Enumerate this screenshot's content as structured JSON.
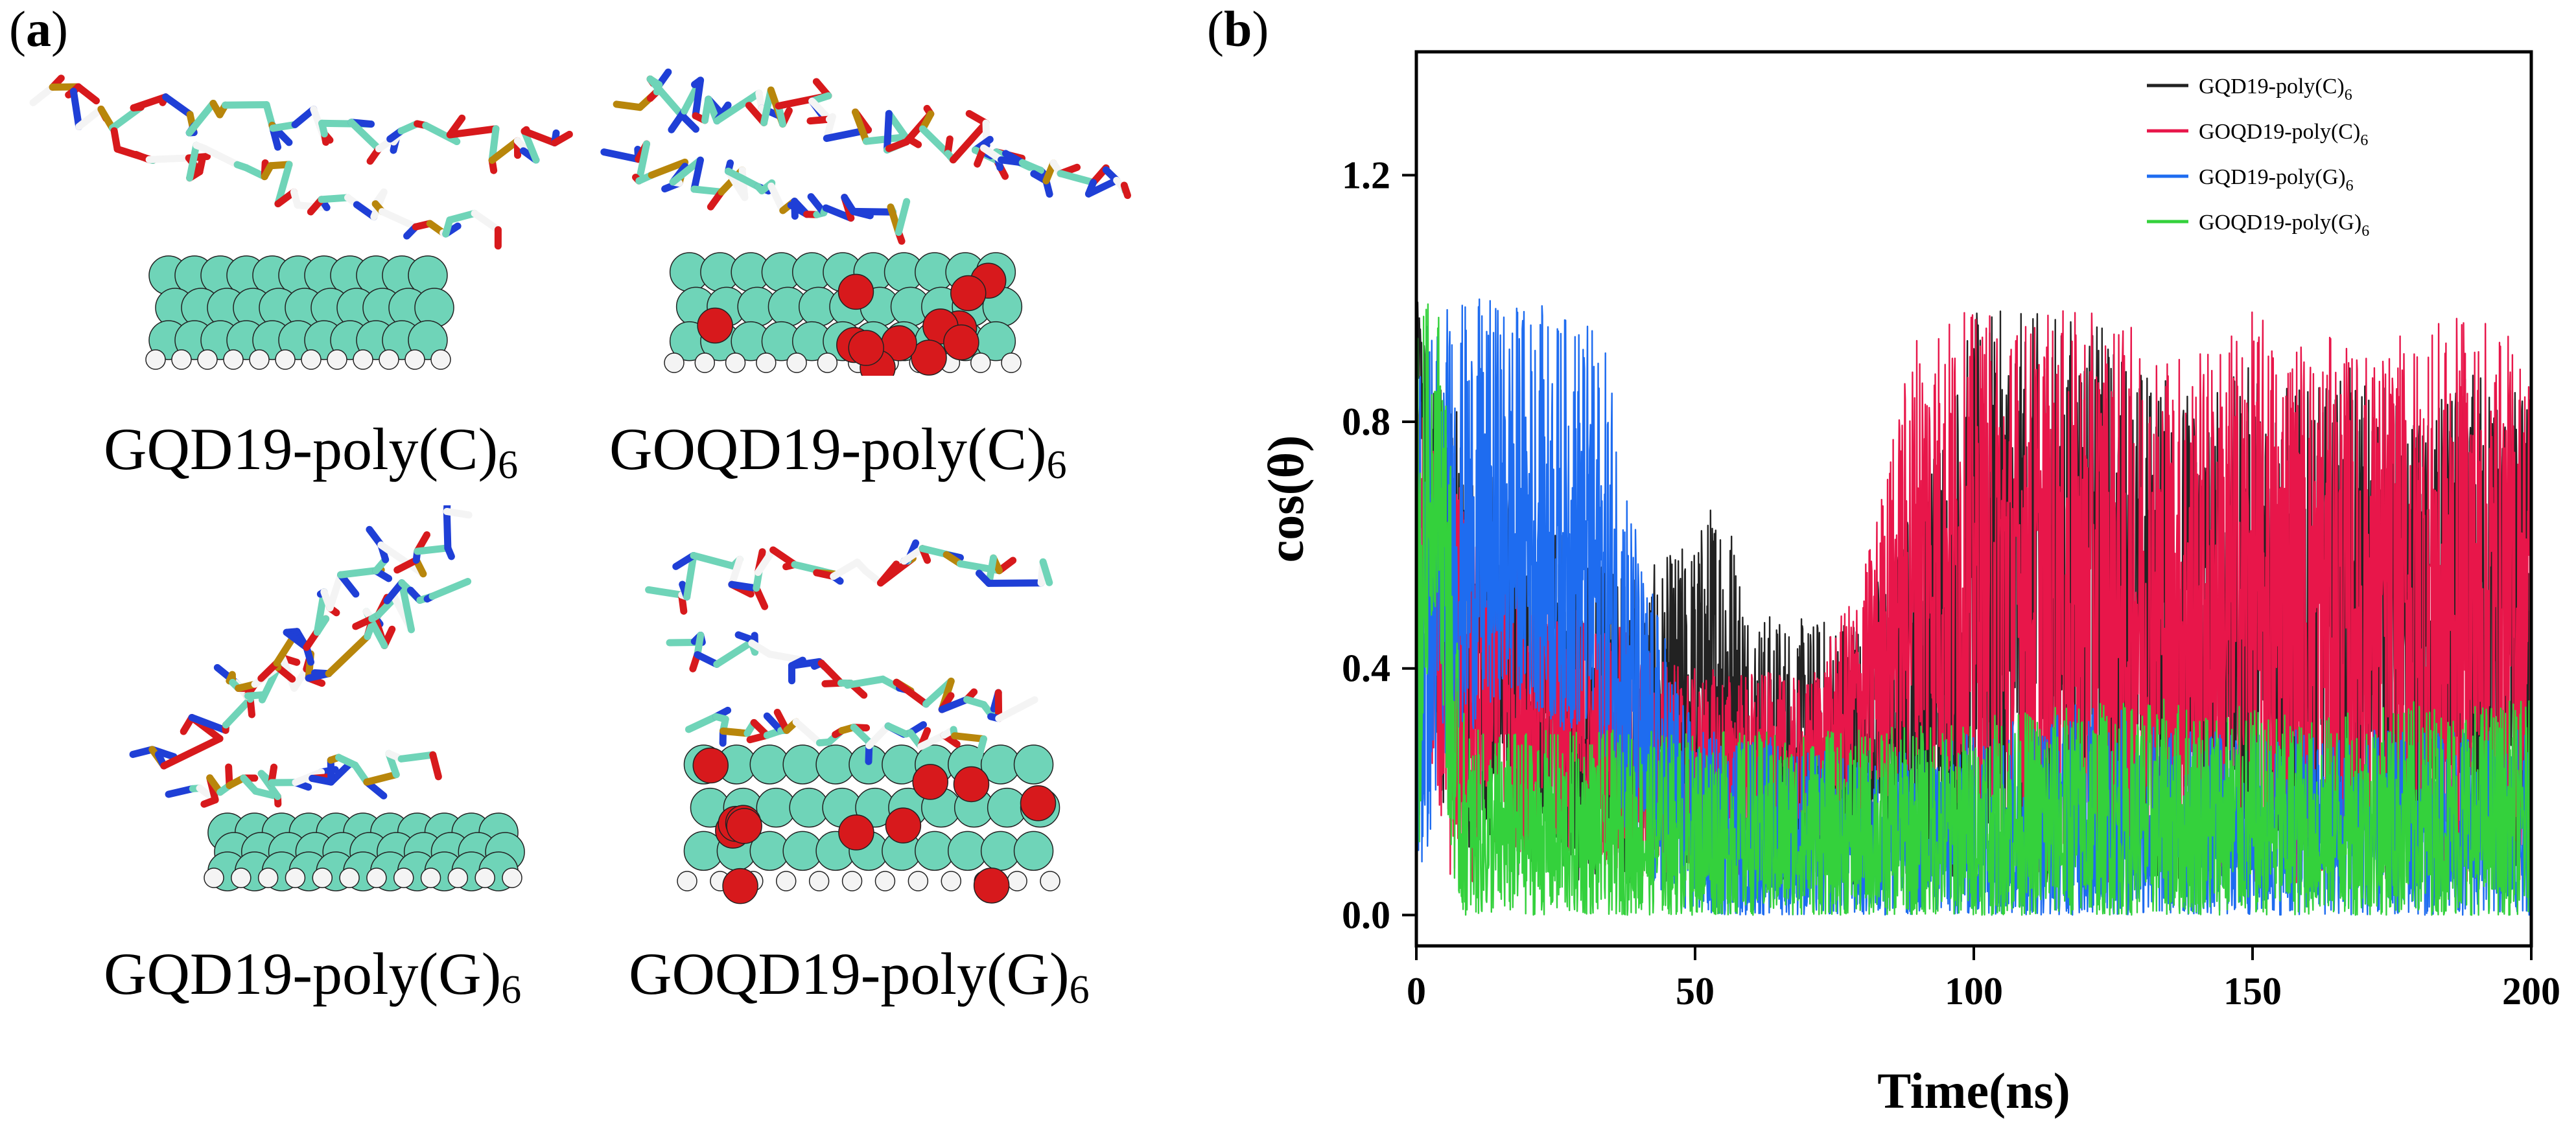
{
  "panel_a": {
    "label_letter": "a",
    "structures": [
      {
        "id": "gqd_c",
        "name": "GQD19-poly(C)",
        "sub": "6",
        "sheet": "plain"
      },
      {
        "id": "goqd_c",
        "name": "GOQD19-poly(C)",
        "sub": "6",
        "sheet": "oxidized"
      },
      {
        "id": "gqd_g",
        "name": "GQD19-poly(G)",
        "sub": "6",
        "sheet": "plain"
      },
      {
        "id": "goqd_g",
        "name": "GOQD19-poly(G)",
        "sub": "6",
        "sheet": "oxidized"
      }
    ]
  },
  "panel_b": {
    "label_letter": "b"
  },
  "colors": {
    "carbon": "#6fd4b8",
    "hydrogen": "#f4f4f4",
    "oxygen": "#d7191c",
    "nitrogen": "#1f3fd6",
    "phosphorus": "#b8860b"
  },
  "chart_data": {
    "type": "line",
    "title": "",
    "xlabel": "Time(ns)",
    "ylabel": "cos(θ)",
    "xlim": [
      0,
      200
    ],
    "ylim": [
      -0.05,
      1.4
    ],
    "xticks": [
      0,
      50,
      100,
      150,
      200
    ],
    "yticks": [
      0.0,
      0.4,
      0.8,
      1.2
    ],
    "ytick_labels": [
      "0.0",
      "0.4",
      "0.8",
      "1.2"
    ],
    "legend_position": "top-right",
    "grid": false,
    "series": [
      {
        "name": "GQD19-poly(C)",
        "sub": "6",
        "color": "#222222",
        "x": [
          0,
          2,
          4,
          6,
          10,
          15,
          20,
          30,
          40,
          50,
          55,
          60,
          70,
          80,
          90,
          100,
          110,
          120,
          130,
          140,
          150,
          160,
          170,
          180,
          190,
          200
        ],
        "low": [
          0.95,
          0.5,
          0.2,
          0.15,
          0.1,
          0.05,
          0.05,
          0.05,
          0.05,
          0.05,
          0.05,
          0.05,
          0.05,
          0.05,
          0.05,
          0.05,
          0.05,
          0.05,
          0.05,
          0.05,
          0.05,
          0.05,
          0.05,
          0.05,
          0.05,
          0.05
        ],
        "high": [
          1.0,
          0.95,
          0.9,
          0.85,
          0.75,
          0.72,
          0.65,
          0.6,
          0.55,
          0.62,
          0.72,
          0.5,
          0.48,
          0.5,
          0.7,
          0.98,
          0.98,
          0.98,
          0.9,
          0.85,
          0.9,
          0.85,
          0.9,
          0.8,
          0.9,
          0.85
        ]
      },
      {
        "name": "GOQD19-poly(C)",
        "sub": "6",
        "color": "#e8164a",
        "x": [
          0,
          2,
          4,
          6,
          10,
          15,
          20,
          30,
          40,
          50,
          60,
          70,
          80,
          90,
          100,
          110,
          120,
          130,
          140,
          150,
          160,
          170,
          180,
          190,
          200
        ],
        "low": [
          0.7,
          0.3,
          0.15,
          0.05,
          0.05,
          0.1,
          0.1,
          0.1,
          0.05,
          0.05,
          0.05,
          0.1,
          0.15,
          0.2,
          0.1,
          0.05,
          0.05,
          0.05,
          0.05,
          0.05,
          0.05,
          0.05,
          0.05,
          0.05,
          0.05
        ],
        "high": [
          0.85,
          0.8,
          0.8,
          0.8,
          0.6,
          0.7,
          0.55,
          0.5,
          0.45,
          0.4,
          0.4,
          0.38,
          0.55,
          0.98,
          0.98,
          0.98,
          0.98,
          0.95,
          0.92,
          0.98,
          0.95,
          0.92,
          0.95,
          0.98,
          0.92
        ]
      },
      {
        "name": "GQD19-poly(G)",
        "sub": "6",
        "color": "#1e6cf0",
        "x": [
          0,
          2,
          4,
          6,
          8,
          10,
          15,
          20,
          25,
          30,
          35,
          40,
          50,
          60,
          80,
          100,
          120,
          140,
          160,
          180,
          200
        ],
        "low": [
          0.0,
          0.1,
          0.2,
          0.3,
          0.3,
          0.3,
          0.35,
          0.35,
          0.3,
          0.3,
          0.2,
          0.05,
          0.0,
          0.0,
          0.0,
          0.0,
          0.0,
          0.0,
          0.0,
          0.0,
          0.0
        ],
        "high": [
          1.0,
          1.0,
          1.0,
          1.0,
          1.0,
          1.0,
          1.0,
          1.0,
          0.98,
          0.98,
          0.9,
          0.6,
          0.3,
          0.3,
          0.25,
          0.3,
          0.35,
          0.3,
          0.3,
          0.3,
          0.3
        ]
      },
      {
        "name": "GOQD19-poly(G)",
        "sub": "6",
        "color": "#34d13c",
        "x": [
          0,
          1,
          2,
          3,
          4,
          5,
          6,
          7,
          8,
          10,
          20,
          40,
          60,
          80,
          100,
          120,
          140,
          160,
          180,
          200
        ],
        "low": [
          0.0,
          0.2,
          0.4,
          0.5,
          0.5,
          0.3,
          0.1,
          0.05,
          0.0,
          0.0,
          0.0,
          0.0,
          0.0,
          0.0,
          0.0,
          0.0,
          0.0,
          0.0,
          0.0,
          0.0
        ],
        "high": [
          1.0,
          1.0,
          1.0,
          1.0,
          1.0,
          0.95,
          0.8,
          0.5,
          0.35,
          0.3,
          0.3,
          0.3,
          0.3,
          0.3,
          0.32,
          0.35,
          0.35,
          0.32,
          0.35,
          0.35
        ]
      }
    ]
  }
}
